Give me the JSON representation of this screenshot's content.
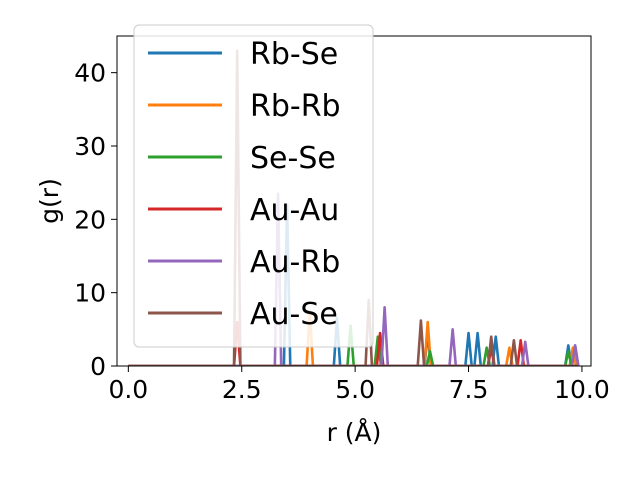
{
  "chart_data": {
    "type": "line",
    "title": "",
    "xlabel": "r (Å)",
    "ylabel": "g(r)",
    "xlim": [
      -0.25,
      10.2
    ],
    "ylim": [
      0,
      45
    ],
    "x_ticks": [
      "0.0",
      "2.5",
      "5.0",
      "7.5",
      "10.0"
    ],
    "x_tick_values": [
      0,
      2.5,
      5.0,
      7.5,
      10.0
    ],
    "y_ticks": [
      "0",
      "10",
      "20",
      "30",
      "40"
    ],
    "y_tick_values": [
      0,
      10,
      20,
      30,
      40
    ],
    "grid": false,
    "legend_position": "upper-left",
    "peak_half_width": 0.07,
    "r_max": 9.9,
    "series": [
      {
        "name": "Rb-Se",
        "color": "#1f77b4",
        "peaks": [
          [
            3.5,
            22
          ],
          [
            4.6,
            6.5
          ],
          [
            6.6,
            4.5
          ],
          [
            7.5,
            4.5
          ],
          [
            7.7,
            4.5
          ],
          [
            8.1,
            4
          ],
          [
            9.7,
            2.8
          ],
          [
            9.85,
            2.8
          ]
        ]
      },
      {
        "name": "Rb-Rb",
        "color": "#ff7f0e",
        "peaks": [
          [
            4.0,
            7.5
          ],
          [
            6.6,
            6
          ],
          [
            8.0,
            3
          ],
          [
            8.4,
            2.5
          ],
          [
            9.8,
            2.5
          ]
        ]
      },
      {
        "name": "Se-Se",
        "color": "#2ca02c",
        "peaks": [
          [
            4.9,
            5.5
          ],
          [
            5.5,
            4
          ],
          [
            6.65,
            2
          ],
          [
            7.9,
            2.5
          ],
          [
            9.7,
            2
          ]
        ]
      },
      {
        "name": "Au-Au",
        "color": "#d62728",
        "peaks": [
          [
            2.4,
            6
          ],
          [
            5.55,
            4.5
          ],
          [
            8.0,
            2.5
          ],
          [
            8.65,
            3.5
          ]
        ]
      },
      {
        "name": "Au-Rb",
        "color": "#9467bd",
        "peaks": [
          [
            3.3,
            23.5
          ],
          [
            5.65,
            8
          ],
          [
            7.15,
            5
          ],
          [
            8.75,
            3.3
          ],
          [
            9.85,
            2.8
          ]
        ]
      },
      {
        "name": "Au-Se",
        "color": "#8c564b",
        "peaks": [
          [
            2.4,
            43
          ],
          [
            5.3,
            9
          ],
          [
            6.45,
            6.2
          ],
          [
            8.0,
            4
          ],
          [
            8.5,
            3.5
          ]
        ]
      }
    ]
  }
}
